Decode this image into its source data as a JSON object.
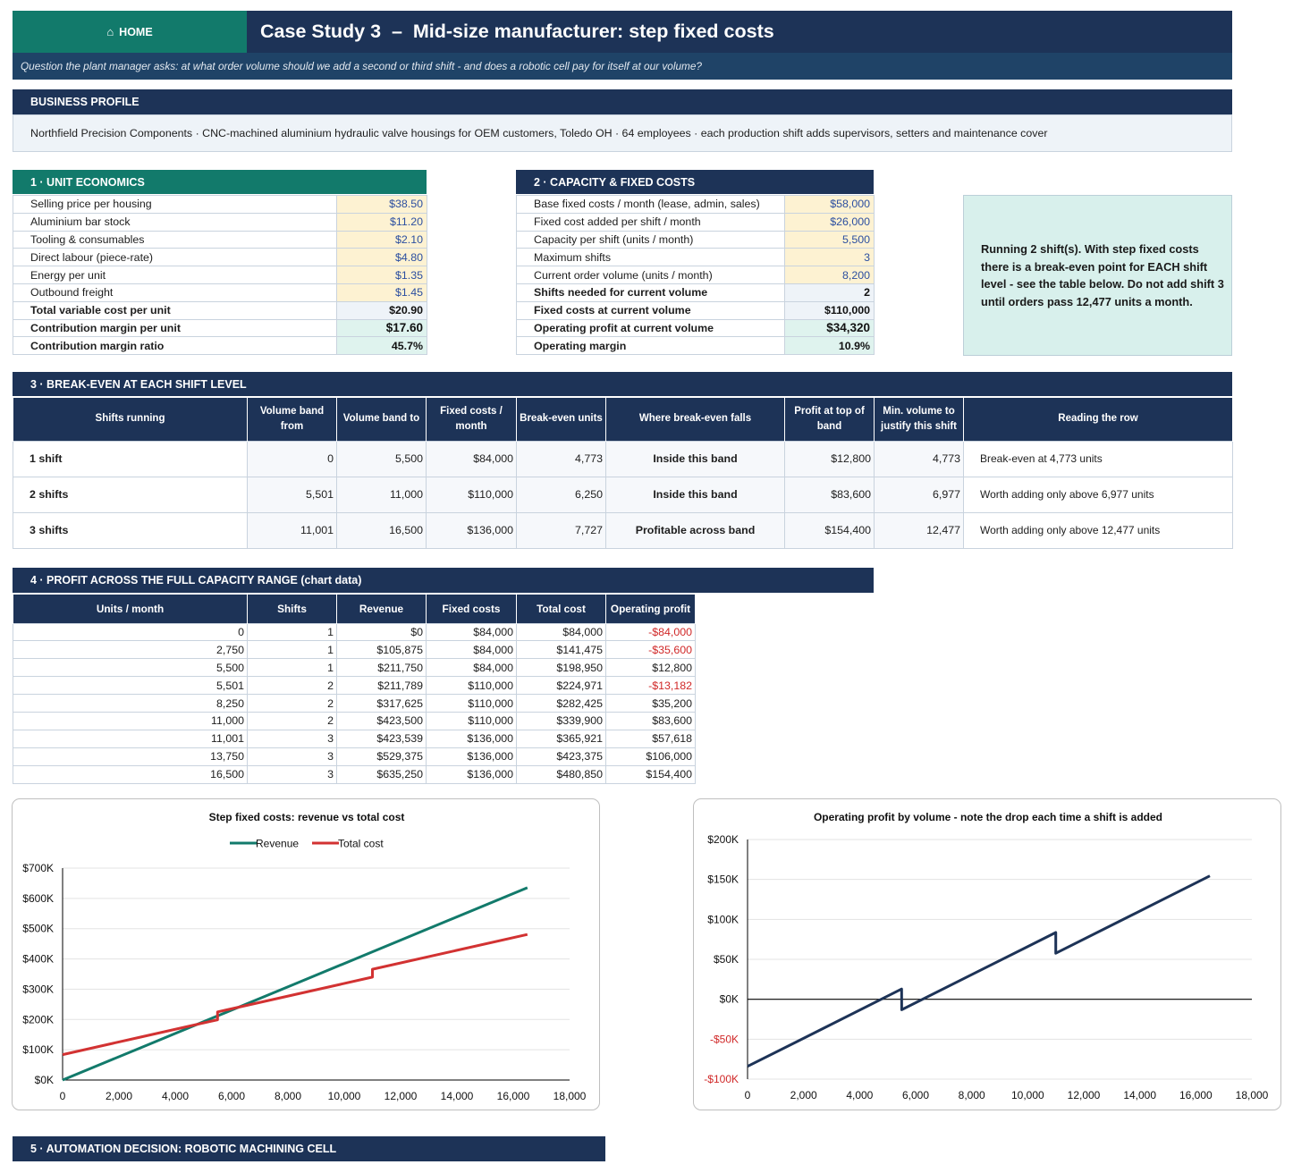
{
  "header": {
    "home_label": "HOME",
    "home_icon": "house-icon",
    "title": "Case Study 3  –  Mid-size manufacturer: step fixed costs",
    "question": "Question the plant manager asks: at what order volume should we add a second or third shift - and does a robotic cell pay for itself at our volume?"
  },
  "colors": {
    "navy": "#1d3357",
    "teal": "#127a6b",
    "input_fill": "#fdf2d2",
    "negative": "#d02828",
    "revenue_line": "#127a6b",
    "cost_line": "#d23232",
    "profit_line": "#1d3357"
  },
  "profile": {
    "title": "BUSINESS PROFILE",
    "text": "Northfield Precision Components  ·  CNC-machined aluminium hydraulic valve housings for OEM customers, Toledo OH  ·  64 employees  ·  each production shift adds supervisors, setters and maintenance cover"
  },
  "unit_economics": {
    "title": "1 · UNIT ECONOMICS",
    "rows": [
      {
        "label": "Selling price per housing",
        "value": "$38.50",
        "kind": "input"
      },
      {
        "label": "Aluminium bar stock",
        "value": "$11.20",
        "kind": "input"
      },
      {
        "label": "Tooling & consumables",
        "value": "$2.10",
        "kind": "input"
      },
      {
        "label": "Direct labour (piece-rate)",
        "value": "$4.80",
        "kind": "input"
      },
      {
        "label": "Energy per unit",
        "value": "$1.35",
        "kind": "input"
      },
      {
        "label": "Outbound freight",
        "value": "$1.45",
        "kind": "input"
      },
      {
        "label": "Total variable cost per unit",
        "value": "$20.90",
        "kind": "calc"
      },
      {
        "label": "Contribution margin per unit",
        "value": "$17.60",
        "kind": "green"
      },
      {
        "label": "Contribution margin ratio",
        "value": "45.7%",
        "kind": "green"
      }
    ]
  },
  "capacity": {
    "title": "2 · CAPACITY & FIXED COSTS",
    "rows": [
      {
        "label": "Base fixed costs / month (lease, admin, sales)",
        "value": "$58,000",
        "kind": "input"
      },
      {
        "label": "Fixed cost added per shift / month",
        "value": "$26,000",
        "kind": "input"
      },
      {
        "label": "Capacity per shift (units / month)",
        "value": "5,500",
        "kind": "input"
      },
      {
        "label": "Maximum shifts",
        "value": "3",
        "kind": "input"
      },
      {
        "label": "Current order volume (units / month)",
        "value": "8,200",
        "kind": "input"
      },
      {
        "label": "Shifts needed for current volume",
        "value": "2",
        "kind": "calc"
      },
      {
        "label": "Fixed costs at current volume",
        "value": "$110,000",
        "kind": "calc"
      },
      {
        "label": "Operating profit at current volume",
        "value": "$34,320",
        "kind": "green"
      },
      {
        "label": "Operating margin",
        "value": "10.9%",
        "kind": "green"
      }
    ]
  },
  "callout": "Running 2 shift(s). With step fixed costs there is a break-even point for EACH shift level - see the table below. Do not add shift 3 until orders pass 12,477 units a month.",
  "breakeven": {
    "title": "3 · BREAK-EVEN AT EACH SHIFT LEVEL",
    "headers": [
      "Shifts running",
      "Volume band from",
      "Volume band to",
      "Fixed costs / month",
      "Break-even units",
      "Where break-even falls",
      "Profit at top of band",
      "Min. volume to justify this shift",
      "Reading the row"
    ],
    "rows": [
      [
        "1 shift",
        "0",
        "5,500",
        "$84,000",
        "4,773",
        "Inside this band",
        "$12,800",
        "4,773",
        "Break-even at 4,773 units"
      ],
      [
        "2 shifts",
        "5,501",
        "11,000",
        "$110,000",
        "6,250",
        "Inside this band",
        "$83,600",
        "6,977",
        "Worth adding only above 6,977 units"
      ],
      [
        "3 shifts",
        "11,001",
        "16,500",
        "$136,000",
        "7,727",
        "Profitable across band",
        "$154,400",
        "12,477",
        "Worth adding only above 12,477 units"
      ]
    ]
  },
  "profit_table": {
    "title": "4 · PROFIT ACROSS THE FULL CAPACITY RANGE  (chart data)",
    "headers": [
      "Units / month",
      "Shifts",
      "Revenue",
      "Fixed costs",
      "Total cost",
      "Operating profit"
    ],
    "rows": [
      [
        "0",
        "1",
        "$0",
        "$84,000",
        "$84,000",
        "-$84,000"
      ],
      [
        "2,750",
        "1",
        "$105,875",
        "$84,000",
        "$141,475",
        "-$35,600"
      ],
      [
        "5,500",
        "1",
        "$211,750",
        "$84,000",
        "$198,950",
        "$12,800"
      ],
      [
        "5,501",
        "2",
        "$211,789",
        "$110,000",
        "$224,971",
        "-$13,182"
      ],
      [
        "8,250",
        "2",
        "$317,625",
        "$110,000",
        "$282,425",
        "$35,200"
      ],
      [
        "11,000",
        "2",
        "$423,500",
        "$110,000",
        "$339,900",
        "$83,600"
      ],
      [
        "11,001",
        "3",
        "$423,539",
        "$136,000",
        "$365,921",
        "$57,618"
      ],
      [
        "13,750",
        "3",
        "$529,375",
        "$136,000",
        "$423,375",
        "$106,000"
      ],
      [
        "16,500",
        "3",
        "$635,250",
        "$136,000",
        "$480,850",
        "$154,400"
      ]
    ]
  },
  "chart_data": [
    {
      "type": "line",
      "title": "Step fixed costs: revenue vs total cost",
      "legend_position": "top",
      "x": [
        0,
        2750,
        5500,
        5501,
        8250,
        11000,
        11001,
        13750,
        16500
      ],
      "series": [
        {
          "name": "Revenue",
          "color": "#127a6b",
          "values": [
            0,
            105875,
            211750,
            211789,
            317625,
            423500,
            423539,
            529375,
            635250
          ]
        },
        {
          "name": "Total cost",
          "color": "#d23232",
          "values": [
            84000,
            141475,
            198950,
            224971,
            282425,
            339900,
            365921,
            423375,
            480850
          ]
        }
      ],
      "xlim": [
        0,
        18000
      ],
      "ylim": [
        0,
        700000
      ],
      "x_ticks": [
        0,
        2000,
        4000,
        6000,
        8000,
        10000,
        12000,
        14000,
        16000,
        18000
      ],
      "x_tick_labels": [
        "0",
        "2,000",
        "4,000",
        "6,000",
        "8,000",
        "10,000",
        "12,000",
        "14,000",
        "16,000",
        "18,000"
      ],
      "y_ticks": [
        0,
        100000,
        200000,
        300000,
        400000,
        500000,
        600000,
        700000
      ],
      "y_tick_labels": [
        "$0K",
        "$100K",
        "$200K",
        "$300K",
        "$400K",
        "$500K",
        "$600K",
        "$700K"
      ],
      "grid": true
    },
    {
      "type": "line",
      "title": "Operating profit by volume - note the drop each time a shift is added",
      "legend_position": "none",
      "x": [
        0,
        2750,
        5500,
        5501,
        8250,
        11000,
        11001,
        13750,
        16500
      ],
      "series": [
        {
          "color": "#1d3357",
          "values": [
            -84000,
            -35600,
            12800,
            -13182,
            35200,
            83600,
            57618,
            106000,
            154400
          ]
        }
      ],
      "xlim": [
        0,
        18000
      ],
      "ylim": [
        -100000,
        200000
      ],
      "x_ticks": [
        0,
        2000,
        4000,
        6000,
        8000,
        10000,
        12000,
        14000,
        16000,
        18000
      ],
      "x_tick_labels": [
        "0",
        "2,000",
        "4,000",
        "6,000",
        "8,000",
        "10,000",
        "12,000",
        "14,000",
        "16,000",
        "18,000"
      ],
      "y_ticks": [
        -100000,
        -50000,
        0,
        50000,
        100000,
        150000,
        200000
      ],
      "y_tick_labels": [
        "-$100K",
        "-$50K",
        "$0K",
        "$50K",
        "$100K",
        "$150K",
        "$200K"
      ],
      "grid": true
    }
  ],
  "automation": {
    "title": "5 · AUTOMATION DECISION: ROBOTIC MACHINING CELL"
  }
}
